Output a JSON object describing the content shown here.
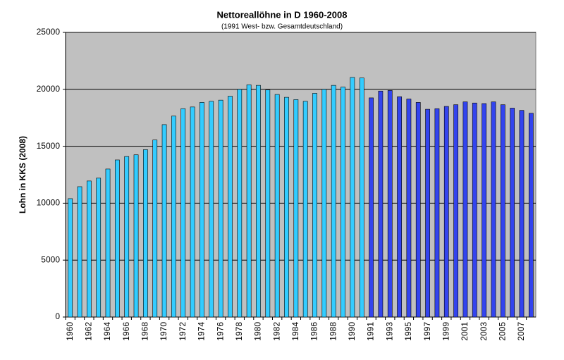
{
  "chart_data": {
    "type": "bar",
    "title": "Nettoreallöhne in D 1960-2008",
    "subtitle": "(1991 West- bzw. Gesamtdeutschland)",
    "y_label": "Lohn in KKS (2008)",
    "categories": [
      "1960",
      null,
      "1962",
      null,
      "1964",
      null,
      "1966",
      null,
      "1968",
      null,
      "1970",
      null,
      "1972",
      null,
      "1974",
      null,
      "1976",
      null,
      "1978",
      null,
      "1980",
      null,
      "1982",
      null,
      "1984",
      null,
      "1986",
      null,
      "1988",
      null,
      "1990",
      null,
      "1991",
      null,
      "1993",
      null,
      "1995",
      null,
      "1997",
      null,
      "1999",
      null,
      "2001",
      null,
      "2003",
      null,
      "2005",
      null,
      "2007",
      null
    ],
    "series": [
      {
        "color": "#33ccff",
        "values": [
          10400,
          11450,
          11950,
          12200,
          13000,
          13800,
          14100,
          14250,
          14700,
          15550,
          16900,
          17650,
          18300,
          18450,
          18850,
          18950,
          19050,
          19400,
          20000,
          20400,
          20350,
          19950,
          19550,
          19300,
          19100,
          18950,
          19650,
          20000,
          20350,
          20200,
          21050,
          21000,
          null,
          null,
          null,
          null,
          null,
          null,
          null,
          null,
          null,
          null,
          null,
          null,
          null,
          null,
          null,
          null,
          null,
          null
        ]
      },
      {
        "color": "#3344ee",
        "values": [
          null,
          null,
          null,
          null,
          null,
          null,
          null,
          null,
          null,
          null,
          null,
          null,
          null,
          null,
          null,
          null,
          null,
          null,
          null,
          null,
          null,
          null,
          null,
          null,
          null,
          null,
          null,
          null,
          null,
          null,
          null,
          null,
          19250,
          19850,
          19900,
          19350,
          19150,
          18850,
          18250,
          18300,
          18500,
          18650,
          18900,
          18800,
          18750,
          18900,
          18650,
          18350,
          18150,
          17900
        ]
      }
    ],
    "ylim": [
      0,
      25000
    ],
    "yticks": [
      0,
      5000,
      10000,
      15000,
      20000,
      25000
    ],
    "grid": true
  }
}
